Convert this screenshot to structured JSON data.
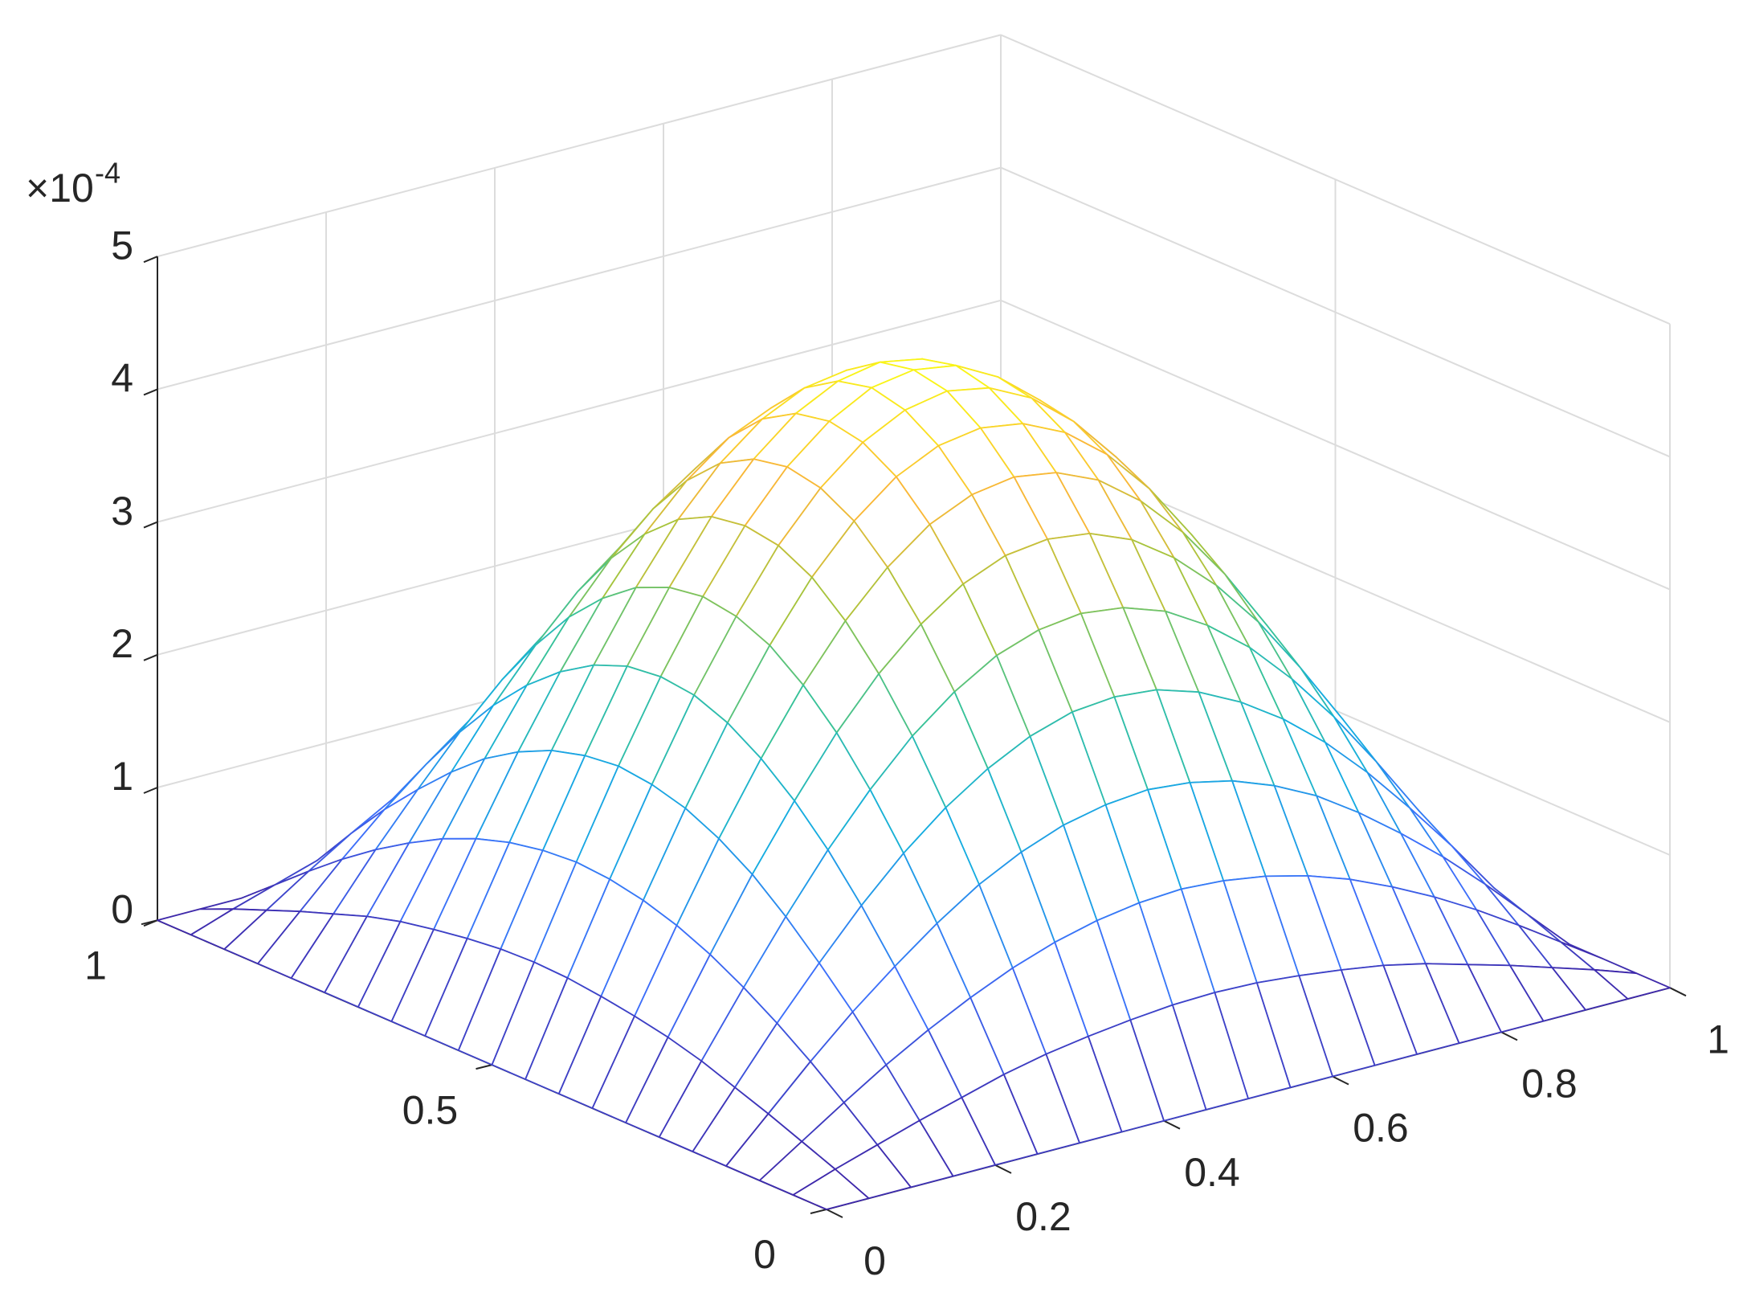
{
  "chart_data": {
    "type": "mesh",
    "colormap": "parula",
    "grid": true,
    "xlim": [
      0,
      1
    ],
    "xticks": [
      0,
      0.2,
      0.4,
      0.6,
      0.8,
      1
    ],
    "ylim": [
      0,
      1
    ],
    "yticks": [
      0,
      0.5,
      1
    ],
    "zlim": [
      0,
      5
    ],
    "zticks": [
      0,
      1,
      2,
      3,
      4,
      5
    ],
    "z_multiplier": {
      "base": "×10",
      "exponent": "-4"
    },
    "x": [
      0,
      0.05,
      0.1,
      0.15,
      0.2,
      0.25,
      0.3,
      0.35,
      0.4,
      0.45,
      0.5,
      0.55,
      0.6,
      0.65,
      0.7,
      0.75,
      0.8,
      0.85,
      0.9,
      0.95,
      1
    ],
    "y": [
      0,
      0.05,
      0.1,
      0.15,
      0.2,
      0.25,
      0.3,
      0.35,
      0.4,
      0.45,
      0.5,
      0.55,
      0.6,
      0.65,
      0.7,
      0.75,
      0.8,
      0.85,
      0.9,
      0.95,
      1
    ],
    "z": [
      [
        0,
        0,
        0,
        0,
        0,
        0,
        0,
        0,
        0,
        0,
        0,
        0,
        0,
        0,
        0,
        0,
        0,
        0,
        0,
        0,
        0
      ],
      [
        0,
        0.11,
        0.21,
        0.31,
        0.4,
        0.49,
        0.56,
        0.61,
        0.65,
        0.68,
        0.69,
        0.68,
        0.65,
        0.61,
        0.56,
        0.49,
        0.4,
        0.31,
        0.21,
        0.11,
        0
      ],
      [
        0,
        0.21,
        0.42,
        0.62,
        0.8,
        0.96,
        1.1,
        1.21,
        1.29,
        1.34,
        1.36,
        1.34,
        1.29,
        1.21,
        1.1,
        0.96,
        0.8,
        0.62,
        0.42,
        0.21,
        0
      ],
      [
        0,
        0.31,
        0.62,
        0.91,
        1.17,
        1.41,
        1.62,
        1.78,
        1.9,
        1.97,
        2.0,
        1.97,
        1.9,
        1.78,
        1.62,
        1.41,
        1.17,
        0.91,
        0.62,
        0.31,
        0
      ],
      [
        0,
        0.4,
        0.8,
        1.17,
        1.52,
        1.83,
        2.09,
        2.3,
        2.46,
        2.56,
        2.59,
        2.56,
        2.46,
        2.3,
        2.09,
        1.83,
        1.52,
        1.17,
        0.8,
        0.4,
        0
      ],
      [
        0,
        0.49,
        0.96,
        1.41,
        1.83,
        2.2,
        2.52,
        2.77,
        2.96,
        3.07,
        3.11,
        3.07,
        2.96,
        2.77,
        2.52,
        2.2,
        1.83,
        1.41,
        0.96,
        0.49,
        0
      ],
      [
        0,
        0.56,
        1.1,
        1.62,
        2.09,
        2.52,
        2.88,
        3.17,
        3.39,
        3.52,
        3.56,
        3.52,
        3.39,
        3.17,
        2.88,
        2.52,
        2.09,
        1.62,
        1.1,
        0.56,
        0
      ],
      [
        0,
        0.61,
        1.21,
        1.78,
        2.3,
        2.77,
        3.17,
        3.49,
        3.73,
        3.87,
        3.92,
        3.87,
        3.73,
        3.49,
        3.17,
        2.77,
        2.3,
        1.78,
        1.21,
        0.61,
        0
      ],
      [
        0,
        0.65,
        1.29,
        1.9,
        2.46,
        2.96,
        3.39,
        3.73,
        3.98,
        4.13,
        4.18,
        4.13,
        3.98,
        3.73,
        3.39,
        2.96,
        2.46,
        1.9,
        1.29,
        0.65,
        0
      ],
      [
        0,
        0.68,
        1.34,
        1.97,
        2.56,
        3.07,
        3.52,
        3.87,
        4.13,
        4.29,
        4.35,
        4.29,
        4.13,
        3.87,
        3.52,
        3.07,
        2.56,
        1.97,
        1.34,
        0.68,
        0
      ],
      [
        0,
        0.69,
        1.36,
        2.0,
        2.59,
        3.11,
        3.56,
        3.92,
        4.18,
        4.35,
        4.4,
        4.35,
        4.18,
        3.92,
        3.56,
        3.11,
        2.59,
        2.0,
        1.36,
        0.69,
        0
      ],
      [
        0,
        0.68,
        1.34,
        1.97,
        2.56,
        3.07,
        3.52,
        3.87,
        4.13,
        4.29,
        4.35,
        4.29,
        4.13,
        3.87,
        3.52,
        3.07,
        2.56,
        1.97,
        1.34,
        0.68,
        0
      ],
      [
        0,
        0.65,
        1.29,
        1.9,
        2.46,
        2.96,
        3.39,
        3.73,
        3.98,
        4.13,
        4.18,
        4.13,
        3.98,
        3.73,
        3.39,
        2.96,
        2.46,
        1.9,
        1.29,
        0.65,
        0
      ],
      [
        0,
        0.61,
        1.21,
        1.78,
        2.3,
        2.77,
        3.17,
        3.49,
        3.73,
        3.87,
        3.92,
        3.87,
        3.73,
        3.49,
        3.17,
        2.77,
        2.3,
        1.78,
        1.21,
        0.61,
        0
      ],
      [
        0,
        0.56,
        1.1,
        1.62,
        2.09,
        2.52,
        2.88,
        3.17,
        3.39,
        3.52,
        3.56,
        3.52,
        3.39,
        3.17,
        2.88,
        2.52,
        2.09,
        1.62,
        1.1,
        0.56,
        0
      ],
      [
        0,
        0.49,
        0.96,
        1.41,
        1.83,
        2.2,
        2.52,
        2.77,
        2.96,
        3.07,
        3.11,
        3.07,
        2.96,
        2.77,
        2.52,
        2.2,
        1.83,
        1.41,
        0.96,
        0.49,
        0
      ],
      [
        0,
        0.4,
        0.8,
        1.17,
        1.52,
        1.83,
        2.09,
        2.3,
        2.46,
        2.56,
        2.59,
        2.56,
        2.46,
        2.3,
        2.09,
        1.83,
        1.52,
        1.17,
        0.8,
        0.4,
        0
      ],
      [
        0,
        0.31,
        0.62,
        0.91,
        1.17,
        1.41,
        1.62,
        1.78,
        1.9,
        1.97,
        2.0,
        1.97,
        1.9,
        1.78,
        1.62,
        1.41,
        1.17,
        0.91,
        0.62,
        0.31,
        0
      ],
      [
        0,
        0.21,
        0.42,
        0.62,
        0.8,
        0.96,
        1.1,
        1.21,
        1.29,
        1.34,
        1.36,
        1.34,
        1.29,
        1.21,
        1.1,
        0.96,
        0.8,
        0.62,
        0.42,
        0.21,
        0
      ],
      [
        0,
        0.11,
        0.21,
        0.31,
        0.4,
        0.49,
        0.56,
        0.61,
        0.65,
        0.68,
        0.69,
        0.68,
        0.65,
        0.61,
        0.56,
        0.49,
        0.4,
        0.31,
        0.21,
        0.11,
        0
      ],
      [
        0,
        0,
        0,
        0,
        0,
        0,
        0,
        0,
        0,
        0,
        0,
        0,
        0,
        0,
        0,
        0,
        0,
        0,
        0,
        0,
        0
      ]
    ]
  }
}
